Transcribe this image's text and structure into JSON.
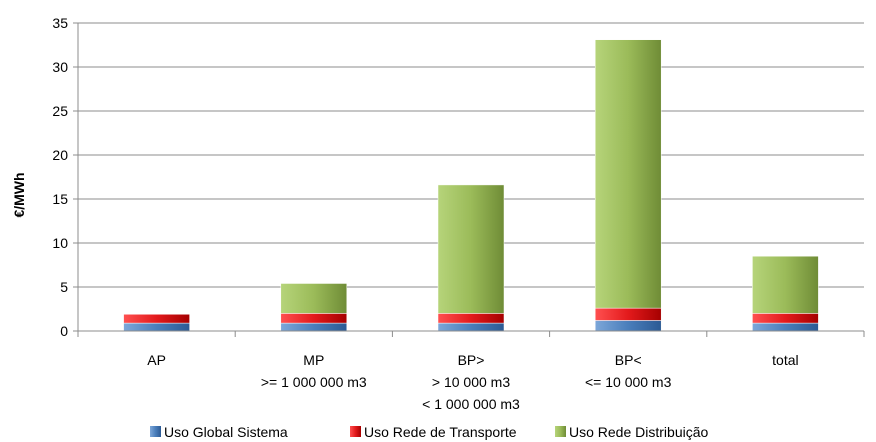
{
  "chart_data": {
    "type": "bar",
    "stacked": true,
    "title": "",
    "xlabel": "",
    "ylabel": "€/MWh",
    "ylim": [
      0,
      35
    ],
    "yticks": [
      0,
      5,
      10,
      15,
      20,
      25,
      30,
      35
    ],
    "grid": true,
    "legend_position": "bottom",
    "categories": [
      [
        "AP"
      ],
      [
        "MP",
        ">= 1 000 000 m3"
      ],
      [
        "BP>",
        "> 10 000 m3",
        "< 1 000 000 m3"
      ],
      [
        "BP<",
        "<= 10 000 m3"
      ],
      [
        "total"
      ]
    ],
    "series": [
      {
        "name": "Uso Global Sistema",
        "color": "#4a7ebb",
        "values": [
          0.9,
          0.9,
          0.9,
          1.2,
          0.9
        ]
      },
      {
        "name": "Uso Rede de Transporte",
        "color": "#e31a1c",
        "values": [
          1.0,
          1.1,
          1.1,
          1.4,
          1.1
        ]
      },
      {
        "name": "Uso Rede Distribuição",
        "color": "#9bbb59",
        "values": [
          0.0,
          3.4,
          14.6,
          30.5,
          6.5
        ]
      }
    ]
  }
}
